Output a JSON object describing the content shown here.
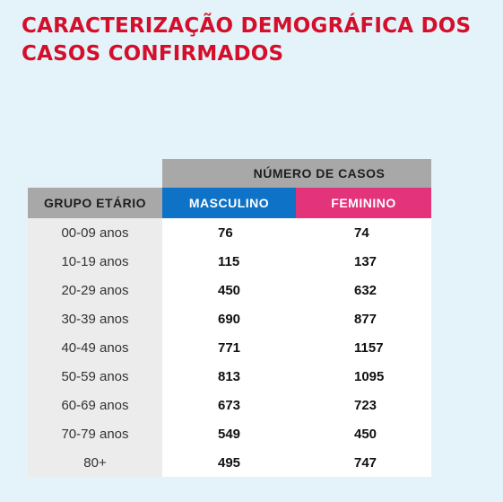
{
  "title": "CARACTERIZAÇÃO DEMOGRÁFICA DOS CASOS CONFIRMADOS",
  "table": {
    "header_group": "NÚMERO DE CASOS",
    "col_age": "GRUPO ETÁRIO",
    "col_male": "MASCULINO",
    "col_female": "FEMININO",
    "rows": [
      {
        "age": "00-09 anos",
        "male": "76",
        "female": "74"
      },
      {
        "age": "10-19 anos",
        "male": "115",
        "female": "137"
      },
      {
        "age": "20-29 anos",
        "male": "450",
        "female": "632"
      },
      {
        "age": "30-39 anos",
        "male": "690",
        "female": "877"
      },
      {
        "age": "40-49 anos",
        "male": "771",
        "female": "1157"
      },
      {
        "age": "50-59 anos",
        "male": "813",
        "female": "1095"
      },
      {
        "age": "60-69 anos",
        "male": "673",
        "female": "723"
      },
      {
        "age": "70-79 anos",
        "male": "549",
        "female": "450"
      },
      {
        "age": "80+",
        "male": "495",
        "female": "747"
      }
    ]
  },
  "colors": {
    "title": "#d40f2b",
    "male_header": "#0e72c7",
    "female_header": "#e3337b",
    "grey_header": "#a8a8a8",
    "background": "#e4f3f9"
  }
}
